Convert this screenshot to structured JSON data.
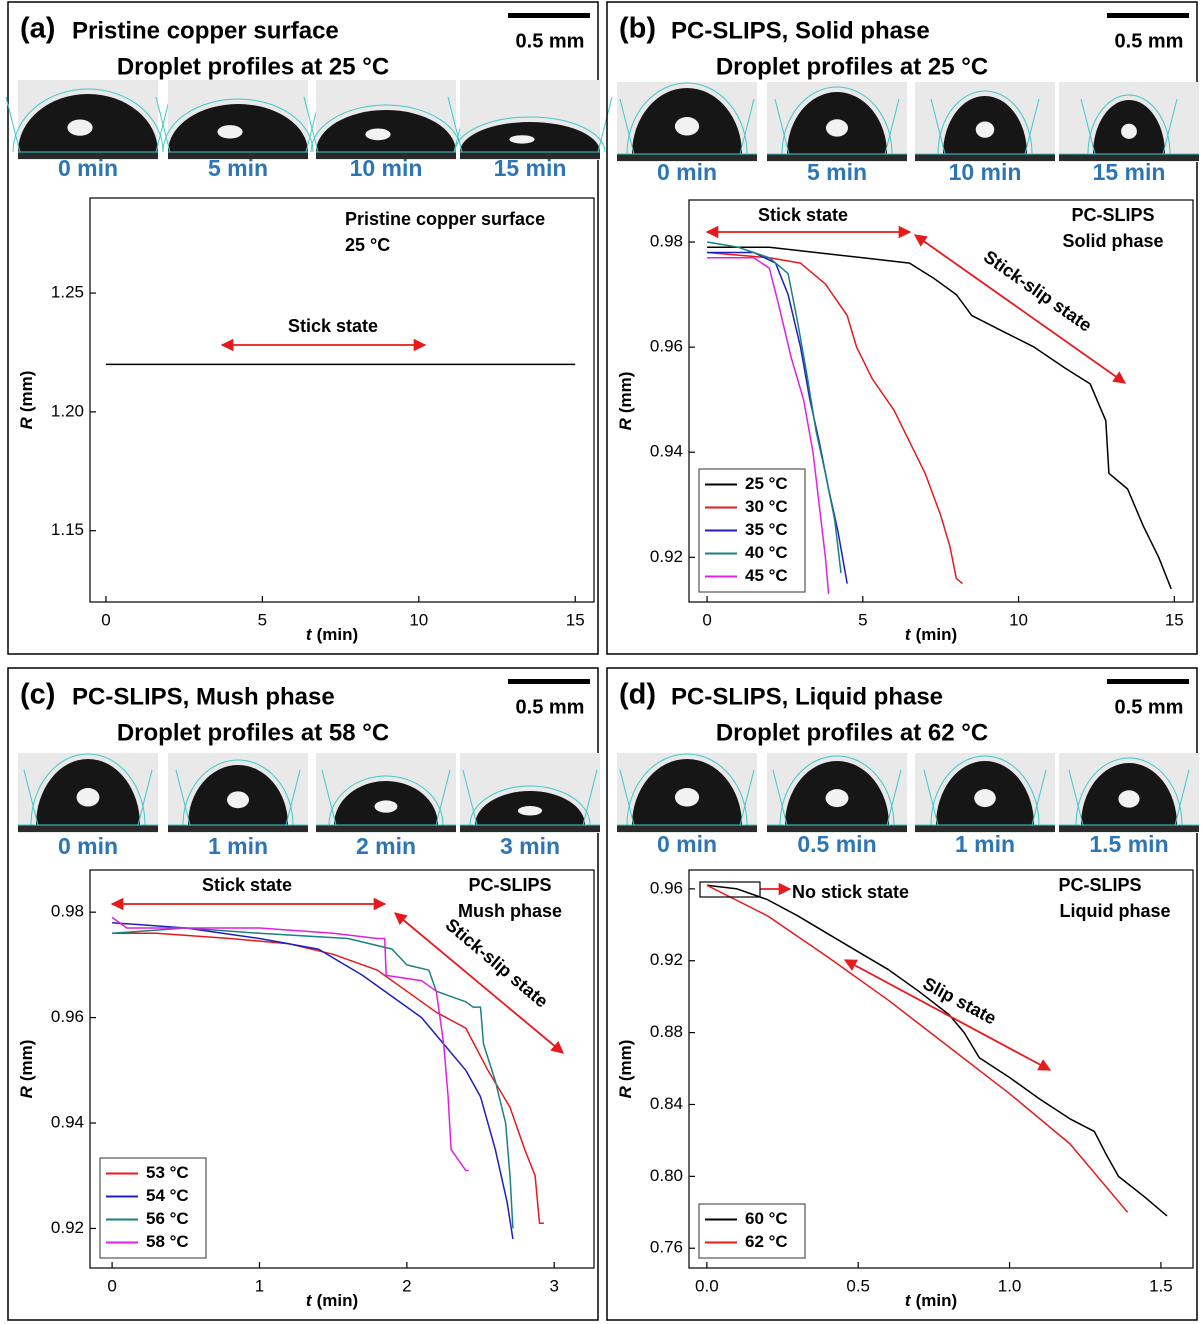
{
  "chart_data": [
    {
      "type": "line",
      "panel": "(a)",
      "title": "Pristine copper surface",
      "subtitle": "Droplet profiles at 25 °C",
      "scale_bar": "0.5 mm",
      "profiles": [
        "0 min",
        "5 min",
        "10 min",
        "15 min"
      ],
      "annotations": [
        "Pristine copper surface",
        "25 °C",
        "Stick state"
      ],
      "xlabel_var": "t",
      "xlabel_unit": "(min)",
      "ylabel_var": "R",
      "ylabel_unit": "(mm)",
      "xlim": [
        -0.51,
        15.6
      ],
      "xticks": [
        0,
        5,
        10,
        15
      ],
      "ylim": [
        1.12,
        1.29
      ],
      "yticks": [
        1.15,
        {
          "value": 1.2,
          "label": "1.20"
        },
        1.25
      ],
      "series": [
        {
          "color": "#000000",
          "x": [
            0,
            1.5,
            3,
            4.5,
            6,
            7.5,
            9,
            10.5,
            12,
            13.5,
            15
          ],
          "values": [
            1.22,
            1.22,
            1.22,
            1.22,
            1.22,
            1.22,
            1.22,
            1.22,
            1.22,
            1.22,
            1.22
          ]
        }
      ]
    },
    {
      "type": "line",
      "panel": "(b)",
      "title": "PC-SLIPS, Solid phase",
      "subtitle": "Droplet profiles at 25 °C",
      "scale_bar": "0.5 mm",
      "profiles": [
        "0 min",
        "5 min",
        "10 min",
        "15 min"
      ],
      "annotations": [
        "PC-SLIPS",
        "Solid phase",
        "Stick state",
        "Stick-slip state"
      ],
      "xlabel_var": "t",
      "xlabel_unit": "(min)",
      "ylabel_var": "R",
      "ylabel_unit": "(mm)",
      "xlim": [
        -0.58,
        15.6
      ],
      "xticks": [
        0,
        5,
        10,
        15
      ],
      "ylim": [
        0.9115,
        0.988
      ],
      "yticks": [
        0.92,
        0.94,
        0.96,
        0.98
      ],
      "series": [
        {
          "name": "25 °C",
          "color": "#000000",
          "x": [
            0,
            2,
            5,
            6.5,
            7.3,
            8,
            8.5,
            9.5,
            10.5,
            11.5,
            12.3,
            12.8,
            12.9,
            13.5,
            14,
            14.5,
            14.9
          ],
          "values": [
            0.979,
            0.979,
            0.977,
            0.976,
            0.973,
            0.97,
            0.966,
            0.963,
            0.96,
            0.956,
            0.953,
            0.946,
            0.936,
            0.933,
            0.926,
            0.92,
            0.914
          ]
        },
        {
          "name": "30 °C",
          "color": "#e8191c",
          "x": [
            0,
            2,
            3,
            3.8,
            4.5,
            4.8,
            5.3,
            6,
            6.5,
            7,
            7.5,
            7.8,
            8,
            8.2
          ],
          "values": [
            0.978,
            0.977,
            0.976,
            0.972,
            0.966,
            0.96,
            0.954,
            0.948,
            0.942,
            0.936,
            0.928,
            0.922,
            0.916,
            0.915
          ]
        },
        {
          "name": "35 °C",
          "color": "#1f1fbf",
          "x": [
            0,
            1.5,
            2.2,
            2.6,
            3,
            3.3,
            3.6,
            3.9,
            4.2,
            4.5
          ],
          "values": [
            0.978,
            0.978,
            0.976,
            0.97,
            0.96,
            0.95,
            0.942,
            0.933,
            0.925,
            0.915
          ]
        },
        {
          "name": "40 °C",
          "color": "#1a8080",
          "x": [
            0,
            1,
            2,
            2.6,
            2.9,
            3.2,
            3.5,
            3.8,
            4.1,
            4.3
          ],
          "values": [
            0.98,
            0.979,
            0.977,
            0.974,
            0.965,
            0.955,
            0.944,
            0.936,
            0.927,
            0.917
          ]
        },
        {
          "name": "45 °C",
          "color": "#e020e0",
          "x": [
            0,
            1.5,
            2,
            2.3,
            2.7,
            3.1,
            3.4,
            3.6,
            3.8,
            3.9
          ],
          "values": [
            0.977,
            0.977,
            0.975,
            0.968,
            0.958,
            0.95,
            0.94,
            0.93,
            0.92,
            0.913
          ]
        }
      ]
    },
    {
      "type": "line",
      "panel": "(c)",
      "title": "PC-SLIPS, Mush phase",
      "subtitle": "Droplet profiles at 58 °C",
      "scale_bar": "0.5 mm",
      "profiles": [
        "0 min",
        "1 min",
        "2 min",
        "3 min"
      ],
      "annotations": [
        "PC-SLIPS",
        "Mush phase",
        "Stick state",
        "Stick-slip state"
      ],
      "xlabel_var": "t",
      "xlabel_unit": "(min)",
      "ylabel_var": "R",
      "ylabel_unit": "(mm)",
      "xlim": [
        -0.15,
        3.27
      ],
      "xticks": [
        0,
        1,
        2,
        3
      ],
      "ylim": [
        0.9125,
        0.988
      ],
      "yticks": [
        0.92,
        0.94,
        0.96,
        0.98
      ],
      "series": [
        {
          "name": "53 °C",
          "color": "#e8191c",
          "x": [
            0,
            0.3,
            0.8,
            1.2,
            1.5,
            1.8,
            2,
            2.2,
            2.4,
            2.55,
            2.7,
            2.8,
            2.87,
            2.9,
            2.93
          ],
          "values": [
            0.976,
            0.976,
            0.975,
            0.974,
            0.972,
            0.969,
            0.965,
            0.961,
            0.958,
            0.95,
            0.943,
            0.935,
            0.93,
            0.921,
            0.921
          ]
        },
        {
          "name": "54 °C",
          "color": "#1f1fbf",
          "x": [
            0,
            0.5,
            1,
            1.4,
            1.7,
            1.9,
            2.1,
            2.25,
            2.4,
            2.5,
            2.6,
            2.68,
            2.72
          ],
          "values": [
            0.978,
            0.977,
            0.975,
            0.973,
            0.968,
            0.964,
            0.96,
            0.955,
            0.95,
            0.945,
            0.935,
            0.925,
            0.918
          ]
        },
        {
          "name": "56 °C",
          "color": "#1a8080",
          "x": [
            0,
            0.5,
            1,
            1.6,
            1.9,
            2,
            2.15,
            2.2,
            2.4,
            2.45,
            2.5,
            2.52,
            2.6,
            2.67,
            2.7,
            2.72
          ],
          "values": [
            0.976,
            0.977,
            0.976,
            0.975,
            0.973,
            0.97,
            0.969,
            0.965,
            0.963,
            0.962,
            0.962,
            0.955,
            0.948,
            0.94,
            0.93,
            0.92
          ]
        },
        {
          "name": "58 °C",
          "color": "#e020e0",
          "x": [
            0,
            0.1,
            0.5,
            1,
            1.5,
            1.8,
            1.85,
            1.86,
            2.1,
            2.2,
            2.25,
            2.28,
            2.3,
            2.35,
            2.4,
            2.42
          ],
          "values": [
            0.979,
            0.977,
            0.977,
            0.977,
            0.976,
            0.975,
            0.975,
            0.968,
            0.967,
            0.965,
            0.955,
            0.945,
            0.935,
            0.933,
            0.931,
            0.931
          ]
        }
      ]
    },
    {
      "type": "line",
      "panel": "(d)",
      "title": "PC-SLIPS, Liquid phase",
      "subtitle": "Droplet profiles at 62 °C",
      "scale_bar": "0.5 mm",
      "profiles": [
        "0 min",
        "0.5 min",
        "1 min",
        "1.5 min"
      ],
      "annotations": [
        "PC-SLIPS",
        "Liquid phase",
        "No stick state",
        "Slip state"
      ],
      "xlabel_var": "t",
      "xlabel_unit": "(min)",
      "ylabel_var": "R",
      "ylabel_unit": "(mm)",
      "xlim": [
        -0.059,
        1.606
      ],
      "xticks": [
        {
          "value": 0,
          "label": "0.0"
        },
        0.5,
        {
          "value": 1,
          "label": "1.0"
        },
        1.5
      ],
      "ylim": [
        0.749,
        0.9705
      ],
      "yticks": [
        0.76,
        {
          "value": 0.8,
          "label": "0.80"
        },
        0.84,
        0.88,
        0.92,
        0.96
      ],
      "series": [
        {
          "name": "60 °C",
          "color": "#000000",
          "x": [
            0,
            0.1,
            0.2,
            0.3,
            0.4,
            0.5,
            0.6,
            0.7,
            0.8,
            0.85,
            0.9,
            1,
            1.1,
            1.2,
            1.28,
            1.32,
            1.36,
            1.45,
            1.52
          ],
          "values": [
            0.962,
            0.96,
            0.954,
            0.945,
            0.935,
            0.925,
            0.915,
            0.903,
            0.89,
            0.88,
            0.866,
            0.855,
            0.843,
            0.832,
            0.825,
            0.812,
            0.8,
            0.788,
            0.778
          ]
        },
        {
          "name": "62 °C",
          "color": "#e8191c",
          "x": [
            0,
            0.2,
            0.4,
            0.6,
            0.8,
            1,
            1.2,
            1.39
          ],
          "values": [
            0.962,
            0.945,
            0.922,
            0.898,
            0.872,
            0.846,
            0.818,
            0.78
          ]
        }
      ]
    }
  ]
}
